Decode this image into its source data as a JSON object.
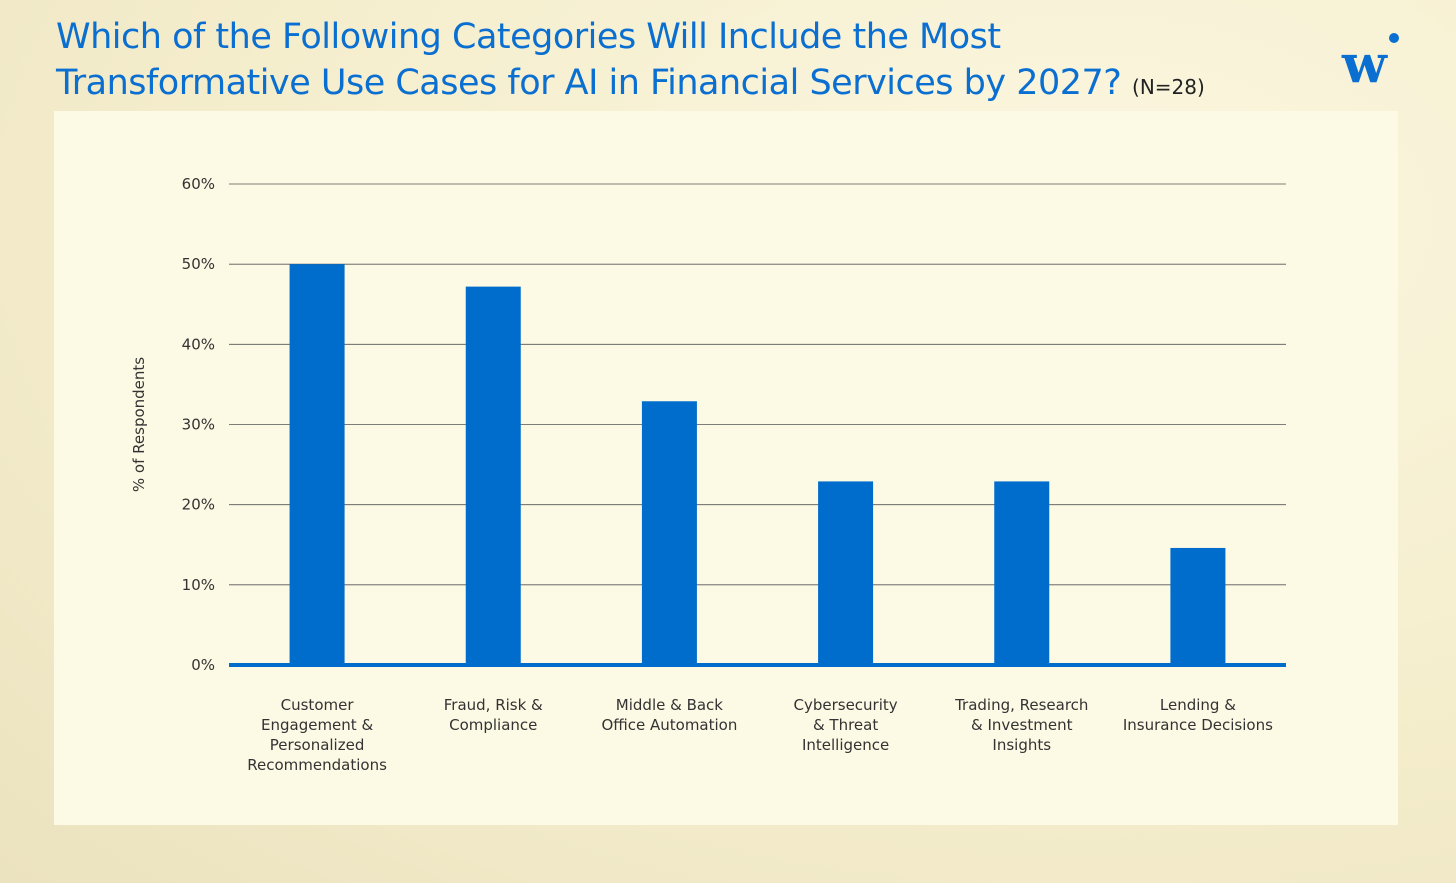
{
  "header": {
    "title_line1": "Which of the Following Categories Will Include the Most",
    "title_line2": "Transformative Use Cases for AI in Financial Services by 2027?",
    "sample": "(N=28)",
    "logo_icon": "w-dot-logo-icon",
    "title_color": "#0a6fd0"
  },
  "chart_data": {
    "type": "bar",
    "categories": [
      "Customer\nEngagement &\nPersonalized\nRecommendations",
      "Fraud, Risk &\nCompliance",
      "Middle & Back\nOffice Automation",
      "Cybersecurity\n& Threat\nIntelligence",
      "Trading, Research\n& Investment\nInsights",
      "Lending &\nInsurance Decisions"
    ],
    "values": [
      50,
      47.2,
      32.9,
      22.9,
      22.9,
      14.6
    ],
    "ylabel": "% of Respondents",
    "xlabel": "",
    "ylim": [
      0,
      60
    ],
    "yticks": [
      0,
      10,
      20,
      30,
      40,
      50,
      60
    ],
    "ytick_labels": [
      "0%",
      "10%",
      "20%",
      "30%",
      "40%",
      "50%",
      "60%"
    ],
    "grid": true,
    "bar_color": "#006ccc",
    "grid_color": "#555555"
  }
}
